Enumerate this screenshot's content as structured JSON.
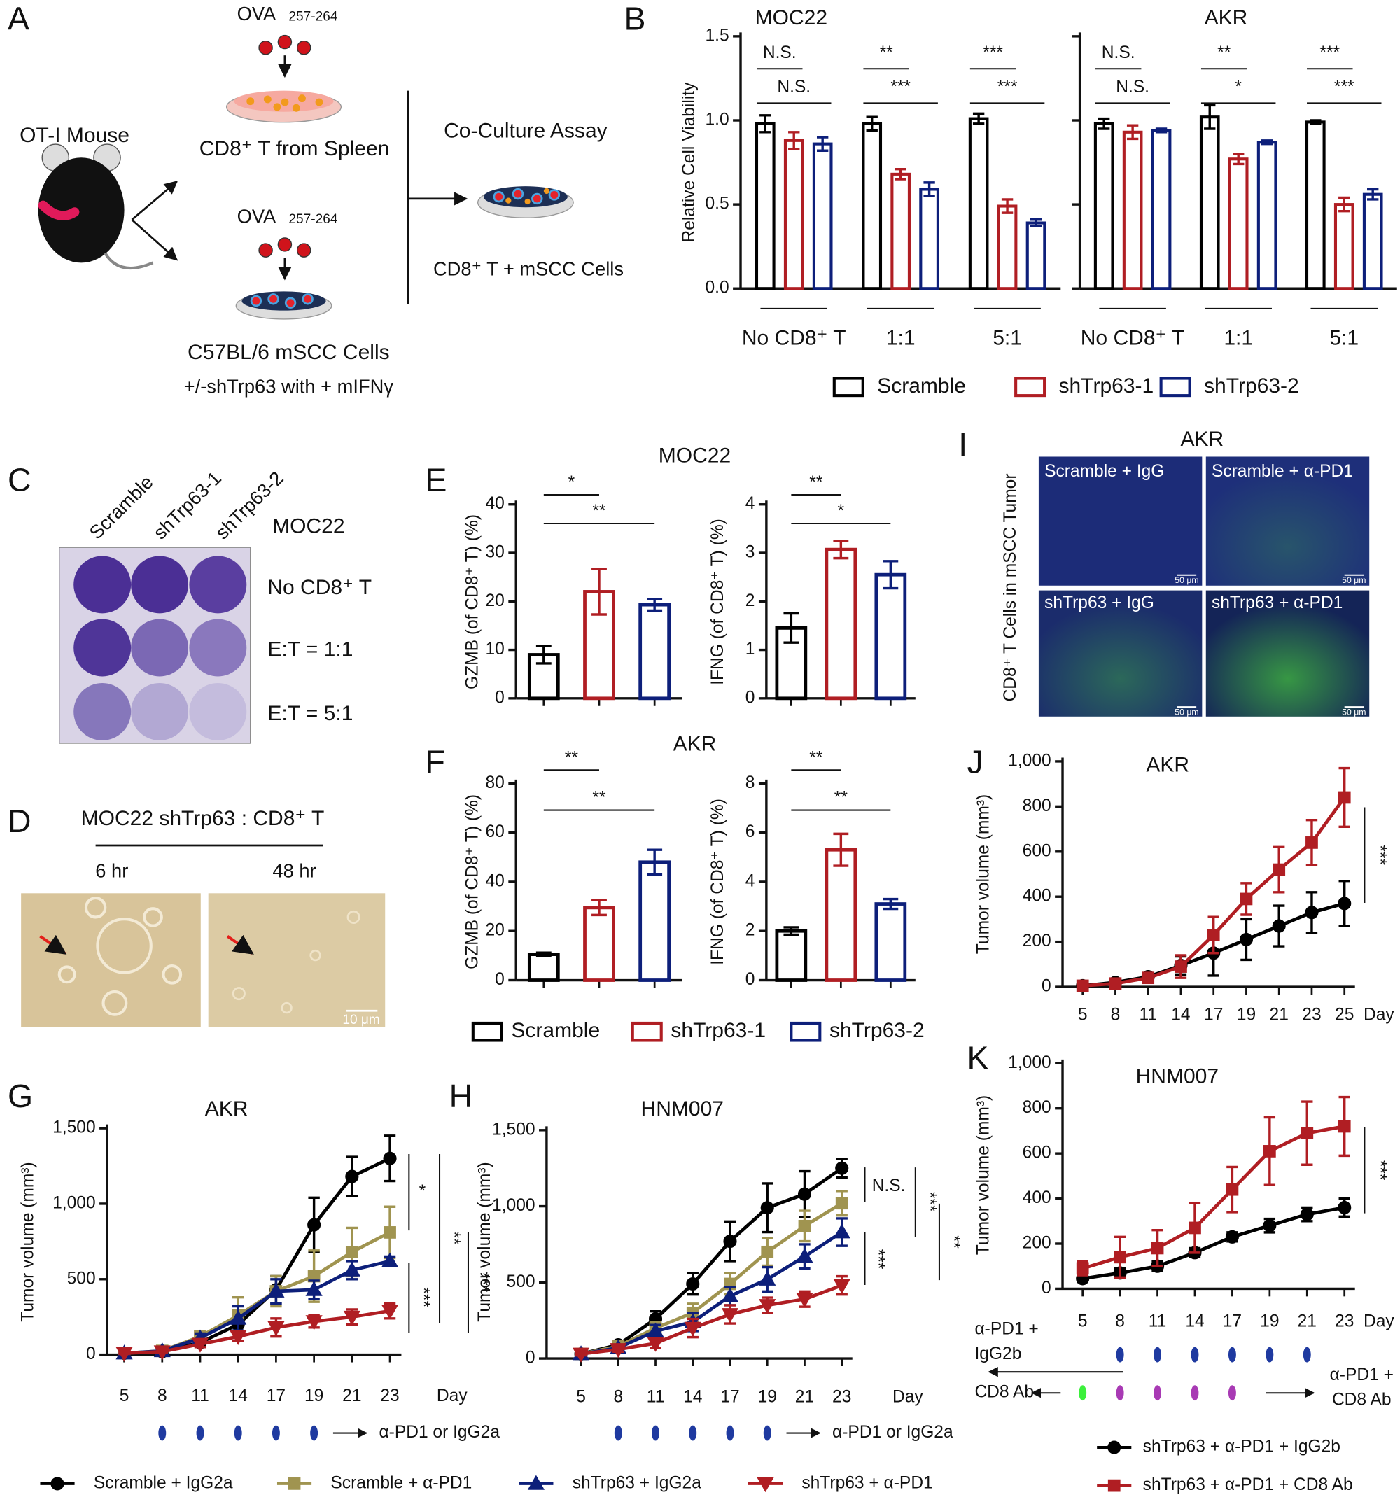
{
  "figure": {
    "panel_labels": [
      "A",
      "B",
      "C",
      "D",
      "E",
      "F",
      "G",
      "H",
      "I",
      "J",
      "K"
    ],
    "A": {
      "ova": [
        "OVA",
        "OVA"
      ],
      "ova_sub": [
        "257-264",
        "257-264"
      ],
      "mouse": "OT-I Mouse",
      "t_cells": "CD8⁺ T from Spleen",
      "cells": [
        "C57BL/6 mSCC Cells",
        "+/-shTrp63 with + mIFNγ"
      ],
      "assay": "Co-Culture Assay",
      "mix": "CD8⁺ T + mSCC Cells"
    },
    "C": {
      "columns": [
        "Scramble",
        "shTrp63-1",
        "shTrp63-2"
      ],
      "title": "MOC22",
      "rows": [
        "No CD8⁺ T",
        "E:T = 1:1",
        "E:T = 5:1"
      ]
    },
    "D": {
      "title": "MOC22 shTrp63 : CD8⁺ T",
      "times": [
        "6 hr",
        "48 hr"
      ],
      "scale": "10 μm"
    },
    "I": {
      "title": "AKR",
      "ylabel": "CD8⁺ T Cells in mSCC Tumor",
      "images": [
        "Scramble + IgG",
        "Scramble + α-PD1",
        "shTrp63 + IgG",
        "shTrp63 + α-PD1"
      ],
      "scale": "50 μm"
    }
  },
  "chart_data": [
    {
      "type": "bar",
      "title": "MOC22",
      "ylabel": "Relative Cell Viability",
      "categories": [
        "No CD8⁺ T",
        "1:1",
        "5:1"
      ],
      "series": [
        {
          "name": "Scramble",
          "color": "#000000",
          "values": [
            0.98,
            0.98,
            1.01
          ],
          "errors": [
            0.05,
            0.04,
            0.03
          ]
        },
        {
          "name": "shTrp63-1",
          "color": "#b01e23",
          "values": [
            0.88,
            0.68,
            0.49
          ],
          "errors": [
            0.05,
            0.03,
            0.04
          ]
        },
        {
          "name": "shTrp63-2",
          "color": "#0d1f7a",
          "values": [
            0.86,
            0.59,
            0.39
          ],
          "errors": [
            0.04,
            0.04,
            0.02
          ]
        }
      ],
      "ylim": [
        0,
        1.5
      ],
      "yticks": [
        {
          "value": 0,
          "label": "0.0"
        },
        0.5,
        {
          "value": 1,
          "label": "1.0"
        },
        1.5
      ],
      "annotations": [
        "N.S.",
        "N.S.",
        "**",
        "***",
        "***",
        "***"
      ]
    },
    {
      "type": "bar",
      "title": "AKR",
      "categories": [
        "No CD8⁺ T",
        "1:1",
        "5:1"
      ],
      "series": [
        {
          "color": "#000000",
          "values": [
            0.98,
            1.02,
            0.99
          ],
          "errors": [
            0.03,
            0.07,
            0.01
          ]
        },
        {
          "color": "#b01e23",
          "values": [
            0.93,
            0.77,
            0.5
          ],
          "errors": [
            0.04,
            0.03,
            0.04
          ]
        },
        {
          "color": "#0d1f7a",
          "values": [
            0.94,
            0.87,
            0.56
          ],
          "errors": [
            0.01,
            0.01,
            0.03
          ]
        }
      ],
      "ylim": [
        0,
        1.5
      ],
      "yticks": [
        0,
        0.5,
        1,
        1.5
      ],
      "ytick_labels": false,
      "annotations": [
        "N.S.",
        "N.S.",
        "**",
        "*",
        "***",
        "***"
      ]
    },
    {
      "type": "bar",
      "title": "MOC22",
      "ylabel": "GZMB (of CD8⁺ T) (%)",
      "values": [
        9,
        22,
        19.3
      ],
      "errors": [
        1.8,
        4.7,
        1.2
      ],
      "colors": [
        "#000000",
        "#b01e23",
        "#0d1f7a"
      ],
      "legend": [
        "Scramble",
        "shTrp63-1",
        "shTrp63-2"
      ],
      "ylim": [
        0,
        40
      ],
      "yticks": [
        0,
        10,
        20,
        30,
        40
      ],
      "annotations": [
        "*",
        "**"
      ]
    },
    {
      "type": "bar",
      "ylabel": "IFNG (of CD8⁺ T) (%)",
      "values": [
        1.45,
        3.07,
        2.55
      ],
      "errors": [
        0.3,
        0.18,
        0.28
      ],
      "colors": [
        "#000000",
        "#b01e23",
        "#0d1f7a"
      ],
      "ylim": [
        0,
        4
      ],
      "yticks": [
        0,
        1,
        2,
        3,
        4
      ],
      "annotations": [
        "**",
        "*"
      ]
    },
    {
      "type": "bar",
      "title": "AKR",
      "ylabel": "GZMB (of CD8⁺ T) (%)",
      "values": [
        10.5,
        29.5,
        48
      ],
      "errors": [
        0.7,
        3,
        5
      ],
      "colors": [
        "#000000",
        "#b01e23",
        "#0d1f7a"
      ],
      "ylim": [
        0,
        80
      ],
      "yticks": [
        0,
        20,
        40,
        60,
        80
      ],
      "annotations": [
        "**",
        "**"
      ]
    },
    {
      "type": "bar",
      "ylabel": "IFNG (of CD8⁺ T) (%)",
      "values": [
        2,
        5.3,
        3.1
      ],
      "errors": [
        0.15,
        0.65,
        0.2
      ],
      "colors": [
        "#000000",
        "#b01e23",
        "#0d1f7a"
      ],
      "ylim": [
        0,
        8
      ],
      "yticks": [
        0,
        2,
        4,
        6,
        8
      ],
      "annotations": [
        "**",
        "**"
      ]
    },
    {
      "type": "line",
      "title": "AKR",
      "ylabel": "Tumor volume (mm³)",
      "xlabel": "Day",
      "categories": [
        "5",
        "8",
        "11",
        "14",
        "17",
        "19",
        "21",
        "23"
      ],
      "series": [
        {
          "name": "Scramble + IgG2a",
          "color": "#000000",
          "marker": "circle",
          "values": [
            10,
            20,
            80,
            200,
            430,
            860,
            1180,
            1300
          ],
          "errors": [
            5,
            10,
            20,
            60,
            90,
            180,
            130,
            150
          ]
        },
        {
          "name": "Scramble + α-PD1",
          "color": "#a09450",
          "marker": "square",
          "values": [
            10,
            25,
            120,
            260,
            420,
            520,
            680,
            810
          ],
          "errors": [
            5,
            10,
            30,
            120,
            100,
            170,
            160,
            170
          ]
        },
        {
          "name": "shTrp63 + IgG2a",
          "color": "#0d1f7a",
          "marker": "triangle-up",
          "values": [
            10,
            25,
            110,
            240,
            420,
            430,
            560,
            620
          ],
          "errors": [
            5,
            10,
            30,
            80,
            80,
            60,
            60,
            30
          ]
        },
        {
          "name": "shTrp63 + α-PD1",
          "color": "#b01e23",
          "marker": "triangle-down",
          "values": [
            10,
            20,
            70,
            120,
            180,
            220,
            250,
            290
          ],
          "errors": [
            5,
            8,
            20,
            30,
            60,
            40,
            50,
            50
          ]
        }
      ],
      "ylim": [
        0,
        1500
      ],
      "yticks": [
        0,
        500,
        {
          "value": 1000,
          "label": "1,000"
        },
        {
          "value": 1500,
          "label": "1,500"
        }
      ],
      "annotations": [
        "*",
        "**",
        "***",
        "***"
      ],
      "dosing_label": "α-PD1 or IgG2a"
    },
    {
      "type": "line",
      "title": "HNM007",
      "ylabel": "Tumor volume (mm³)",
      "xlabel": "Day",
      "categories": [
        "5",
        "8",
        "11",
        "14",
        "17",
        "19",
        "21",
        "23"
      ],
      "series": [
        {
          "color": "#000000",
          "marker": "circle",
          "values": [
            30,
            90,
            260,
            490,
            770,
            990,
            1080,
            1250
          ],
          "errors": [
            10,
            15,
            50,
            70,
            130,
            160,
            150,
            60
          ]
        },
        {
          "color": "#a09450",
          "marker": "square",
          "values": [
            30,
            80,
            200,
            300,
            490,
            700,
            870,
            1020
          ],
          "errors": [
            10,
            15,
            40,
            60,
            70,
            90,
            100,
            80
          ]
        },
        {
          "color": "#0d1f7a",
          "marker": "triangle-up",
          "values": [
            30,
            70,
            180,
            240,
            410,
            520,
            670,
            830
          ],
          "errors": [
            10,
            15,
            40,
            60,
            60,
            80,
            80,
            90
          ]
        },
        {
          "color": "#b01e23",
          "marker": "triangle-down",
          "values": [
            30,
            60,
            100,
            200,
            290,
            350,
            390,
            480
          ],
          "errors": [
            10,
            15,
            30,
            60,
            60,
            50,
            50,
            60
          ]
        }
      ],
      "ylim": [
        0,
        1500
      ],
      "yticks": [
        0,
        500,
        {
          "value": 1000,
          "label": "1,000"
        },
        {
          "value": 1500,
          "label": "1,500"
        }
      ],
      "annotations": [
        "N.S.",
        "***",
        "***",
        "**"
      ],
      "dosing_label": "α-PD1 or IgG2a"
    },
    {
      "type": "line",
      "title": "AKR",
      "ylabel": "Tumor volume (mm³)",
      "xlabel": "Day",
      "categories": [
        "5",
        "8",
        "11",
        "14",
        "17",
        "19",
        "21",
        "23",
        "25"
      ],
      "series": [
        {
          "color": "#000000",
          "marker": "circle",
          "values": [
            5,
            20,
            45,
            95,
            150,
            210,
            270,
            330,
            370
          ],
          "errors": [
            3,
            5,
            10,
            40,
            100,
            90,
            90,
            90,
            100
          ]
        },
        {
          "color": "#b01e23",
          "marker": "square",
          "values": [
            5,
            15,
            40,
            90,
            230,
            390,
            520,
            640,
            840
          ],
          "errors": [
            3,
            5,
            10,
            50,
            80,
            70,
            100,
            100,
            130
          ]
        }
      ],
      "ylim": [
        0,
        1000
      ],
      "yticks": [
        0,
        200,
        400,
        600,
        800,
        {
          "value": 1000,
          "label": "1,000"
        }
      ],
      "annotations": [
        "***"
      ]
    },
    {
      "type": "line",
      "title": "HNM007",
      "ylabel": "Tumor volume (mm³)",
      "xlabel": "Day",
      "categories": [
        "5",
        "8",
        "11",
        "14",
        "17",
        "19",
        "21",
        "23"
      ],
      "series": [
        {
          "name": "shTrp63 + α-PD1 + IgG2b",
          "color": "#000000",
          "marker": "circle",
          "values": [
            45,
            70,
            100,
            160,
            230,
            280,
            330,
            360
          ],
          "errors": [
            15,
            20,
            20,
            20,
            20,
            30,
            30,
            40
          ]
        },
        {
          "name": "shTrp63 + α-PD1 + CD8 Ab",
          "color": "#b01e23",
          "marker": "square",
          "values": [
            90,
            140,
            180,
            270,
            440,
            610,
            690,
            720
          ],
          "errors": [
            30,
            90,
            80,
            110,
            100,
            150,
            140,
            130
          ]
        }
      ],
      "ylim": [
        0,
        1000
      ],
      "yticks": [
        0,
        200,
        400,
        600,
        800,
        {
          "value": 1000,
          "label": "1,000"
        }
      ],
      "annotations": [
        "***"
      ],
      "dosing": {
        "left_top": [
          "α-PD1 +",
          "IgG2b"
        ],
        "left_bottom": "CD8 Ab",
        "right_bottom": [
          "α-PD1 +",
          "CD8 Ab"
        ]
      }
    }
  ]
}
